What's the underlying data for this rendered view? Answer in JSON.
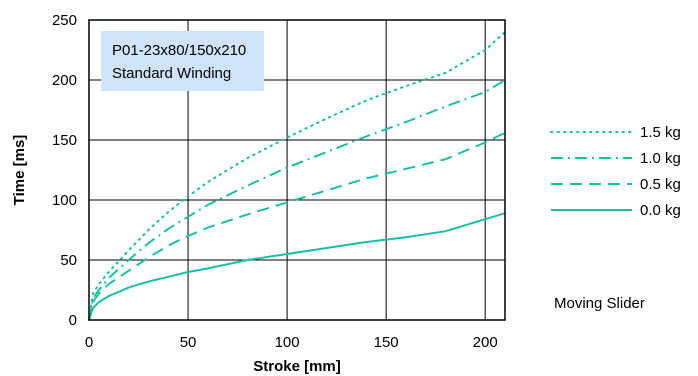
{
  "chart_data": {
    "type": "line",
    "title": "",
    "xlabel": "Stroke [mm]",
    "ylabel": "Time [ms]",
    "xlim": [
      0,
      210
    ],
    "ylim": [
      0,
      250
    ],
    "x_ticks": [
      "0",
      "50",
      "100",
      "150",
      "200"
    ],
    "y_ticks": [
      "0",
      "50",
      "100",
      "150",
      "200",
      "250"
    ],
    "grid": true,
    "legend_position": "right",
    "annotation_box": {
      "line1": "P01-23x80/150x210",
      "line2": "Standard Winding"
    },
    "side_note": "Moving Slider",
    "line_color": "#1bbfa8",
    "annotation_bg": "#cfe4fa",
    "series": [
      {
        "name": "1.5 kg",
        "style": "dotted",
        "x": [
          0,
          2,
          5,
          10,
          20,
          30,
          40,
          50,
          60,
          80,
          100,
          120,
          140,
          160,
          180,
          200,
          210
        ],
        "y": [
          0,
          22,
          30,
          40,
          58,
          75,
          90,
          103,
          115,
          135,
          152,
          168,
          183,
          195,
          206,
          225,
          240
        ]
      },
      {
        "name": "1.0 kg",
        "style": "dashdot",
        "x": [
          0,
          2,
          5,
          10,
          20,
          30,
          40,
          50,
          60,
          80,
          100,
          120,
          140,
          160,
          180,
          200,
          210
        ],
        "y": [
          0,
          18,
          25,
          35,
          50,
          64,
          76,
          86,
          96,
          112,
          127,
          140,
          153,
          165,
          178,
          190,
          200
        ]
      },
      {
        "name": "0.5 kg",
        "style": "dashed",
        "x": [
          0,
          2,
          5,
          10,
          20,
          30,
          40,
          50,
          60,
          80,
          100,
          120,
          140,
          160,
          180,
          200,
          210
        ],
        "y": [
          0,
          15,
          22,
          30,
          41,
          52,
          62,
          70,
          77,
          88,
          98,
          108,
          118,
          126,
          134,
          148,
          156
        ]
      },
      {
        "name": "0.0 kg",
        "style": "solid",
        "x": [
          0,
          2,
          5,
          10,
          20,
          30,
          40,
          50,
          60,
          80,
          100,
          120,
          140,
          160,
          180,
          200,
          210
        ],
        "y": [
          0,
          10,
          15,
          20,
          27,
          32,
          36,
          40,
          43,
          50,
          55,
          60,
          65,
          69,
          74,
          84,
          89
        ]
      }
    ]
  }
}
